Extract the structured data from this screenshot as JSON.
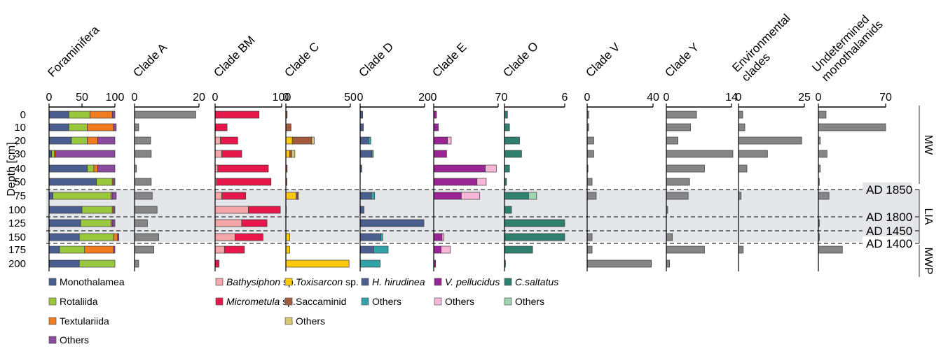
{
  "chart_data": {
    "type": "bar",
    "orientation": "horizontal",
    "stacked": true,
    "y_axis_label": "Depth [cm]",
    "depths": [
      "0",
      "10",
      "20",
      "30",
      "40",
      "50",
      "75",
      "100",
      "125",
      "150",
      "175",
      "200"
    ],
    "bands": [
      {
        "label": "LIA",
        "from_depth": "75",
        "to_depth": "150"
      }
    ],
    "horizons": [
      {
        "label": "AD 1850",
        "at_depth": "75"
      },
      {
        "label": "AD 1800",
        "at_depth": "125"
      },
      {
        "label": "AD 1450",
        "at_depth": "150"
      },
      {
        "label": "AD 1400",
        "at_depth": "175"
      }
    ],
    "periods": [
      {
        "label": "MW",
        "from_depth": "0",
        "to_depth": "50"
      },
      {
        "label": "LIA",
        "from_depth": "75",
        "to_depth": "150"
      },
      {
        "label": "MWP",
        "from_depth": "175",
        "to_depth": "200"
      }
    ],
    "panels": [
      {
        "title": "Foraminifera",
        "ticks": [
          "0",
          "50",
          "100"
        ],
        "max": 100,
        "series": [
          {
            "name": "Monothalamea",
            "color": "#4a5e8f",
            "values": [
              30,
              30,
              34,
              4,
              58,
              72,
              6,
              50,
              48,
              46,
              16,
              46
            ]
          },
          {
            "name": "Rotaliida",
            "color": "#9ac83d",
            "values": [
              32,
              28,
              24,
              4,
              10,
              24,
              88,
              46,
              46,
              52,
              38,
              54
            ]
          },
          {
            "name": "Textulariida",
            "color": "#f07c1f",
            "values": [
              34,
              40,
              16,
              2,
              6,
              2,
              2,
              2,
              2,
              6,
              44,
              0
            ]
          },
          {
            "name": "Others",
            "color": "#8a4a9e",
            "values": [
              4,
              4,
              26,
              90,
              26,
              2,
              6,
              2,
              4,
              2,
              2,
              0
            ]
          }
        ]
      },
      {
        "title": "Clade A",
        "ticks": [
          "0",
          "20"
        ],
        "max": 20,
        "series": [
          {
            "name": "Clade A",
            "color": "#858585",
            "values": [
              19,
              1.3,
              5,
              5.2,
              0.6,
              5.2,
              5.5,
              7,
              4,
              7.5,
              6,
              1.3
            ]
          }
        ]
      },
      {
        "title": "Clade BM",
        "ticks": [
          "0",
          "100"
        ],
        "max": 100,
        "series": [
          {
            "name": "Bathysiphon sp.",
            "color": "#f4a6a8",
            "values": [
              0,
              0,
              8,
              10,
              4,
              2,
              10,
              50,
              40,
              30,
              14,
              0
            ]
          },
          {
            "name": "Micrometula sp.",
            "color": "#e8174b",
            "values": [
              66,
              18,
              26,
              30,
              76,
              82,
              36,
              48,
              38,
              42,
              30,
              6
            ]
          }
        ]
      },
      {
        "title": "Clade C",
        "ticks": [
          "0",
          "50"
        ],
        "max": 50,
        "series": [
          {
            "name": "Toxisarcon sp.",
            "color": "#fcc90d",
            "values": [
              0,
              0,
              5,
              3,
              0,
              0,
              8,
              0,
              0,
              3,
              3,
              49
            ]
          },
          {
            "name": "Saccaminid",
            "color": "#a45a3c",
            "values": [
              1,
              4,
              15,
              1.5,
              1,
              0.8,
              1,
              0.3,
              0,
              0,
              0,
              0
            ]
          },
          {
            "name": "Others",
            "color": "#d8c870",
            "values": [
              0,
              0,
              2,
              2.5,
              0,
              0,
              1,
              0,
              0,
              0,
              0,
              0
            ]
          }
        ]
      },
      {
        "title": "Clade D",
        "ticks": [
          "0",
          "20"
        ],
        "max": 20,
        "series": [
          {
            "name": "H. hirudinea",
            "color": "#4a5e8f",
            "values": [
              0.8,
              1,
              2.5,
              3.6,
              0.5,
              0,
              3.5,
              1.2,
              19.8,
              6.4,
              4.2,
              0
            ]
          },
          {
            "name": "Others",
            "color": "#33a3aa",
            "values": [
              0,
              0,
              0.8,
              0.5,
              0,
              0,
              1,
              0,
              0,
              0.6,
              4.5,
              6.2
            ]
          }
        ]
      },
      {
        "title": "Clade E",
        "ticks": [
          "0",
          "7"
        ],
        "max": 7,
        "series": [
          {
            "name": "V. pellucidus",
            "color": "#9b2495",
            "values": [
              0.3,
              0.5,
              1.5,
              1.4,
              5.6,
              4.7,
              3.0,
              0,
              0,
              0.9,
              0.8,
              0.2
            ]
          },
          {
            "name": "Others",
            "color": "#f7b7d6",
            "values": [
              0,
              0,
              0.4,
              0,
              1.2,
              1.0,
              2.0,
              0,
              0,
              0.2,
              1.0,
              0
            ]
          }
        ]
      },
      {
        "title": "Clade O",
        "ticks": [
          "0",
          "6"
        ],
        "max": 6,
        "series": [
          {
            "name": "C.saltatus",
            "color": "#2f7f6f",
            "values": [
              0.3,
              0.5,
              1.5,
              1.7,
              0.5,
              0.2,
              2.4,
              0.7,
              6,
              6,
              2.8,
              0.1
            ]
          },
          {
            "name": "Others",
            "color": "#9fd4b0",
            "values": [
              0,
              0,
              0,
              0,
              0,
              0,
              0.8,
              0,
              0,
              0,
              0,
              0
            ]
          }
        ]
      },
      {
        "title": "Clade V",
        "ticks": [
          "0",
          "40"
        ],
        "max": 40,
        "series": [
          {
            "name": "Clade V",
            "color": "#858585",
            "values": [
              1,
              1,
              4,
              4,
              0.5,
              3,
              5.5,
              0,
              0,
              3,
              3,
              39
            ]
          }
        ]
      },
      {
        "title": "Clade Y",
        "ticks": [
          "0",
          "14"
        ],
        "max": 14,
        "series": [
          {
            "name": "Clade Y",
            "color": "#858585",
            "values": [
              6.5,
              5.2,
              2.5,
              14.3,
              8.2,
              5.0,
              4.7,
              0.3,
              0,
              1.3,
              8.2,
              0.7
            ]
          }
        ]
      },
      {
        "title": "Environmental clades",
        "title_lines": [
          "Environmental",
          "clades"
        ],
        "ticks": [
          "0",
          "25"
        ],
        "max": 25,
        "series": [
          {
            "name": "Environmental clades",
            "color": "#858585",
            "values": [
              1.6,
              2.4,
              24,
              11,
              3.2,
              0,
              1,
              0,
              0,
              0,
              1.8,
              0
            ]
          }
        ]
      },
      {
        "title": "Undetermined monothalamids",
        "title_lines": [
          "Undetermined",
          "monothalamids"
        ],
        "ticks": [
          "0",
          "70"
        ],
        "max": 70,
        "series": [
          {
            "name": "Undetermined monothalamids",
            "color": "#858585",
            "values": [
              8,
              70,
              2,
              9,
              2,
              1,
              11,
              0,
              1,
              1,
              25,
              0
            ]
          }
        ]
      }
    ],
    "legend": [
      {
        "label": "Monothalamea",
        "italic": false,
        "color": "#4a5e8f"
      },
      {
        "label": "Rotaliida",
        "italic": false,
        "color": "#9ac83d"
      },
      {
        "label": "Textulariida",
        "italic": false,
        "color": "#f07c1f"
      },
      {
        "label": "Others",
        "italic": false,
        "color": "#8a4a9e"
      },
      {
        "label": "Bathysiphon",
        "suffix": " sp.",
        "italic": true,
        "color": "#f4a6a8"
      },
      {
        "label": "Micrometula",
        "suffix": " sp.",
        "italic": true,
        "color": "#e8174b"
      },
      {
        "label": "Toxisarcon",
        "suffix": " sp.",
        "italic": true,
        "color": "#fcc90d"
      },
      {
        "label": "Saccaminid",
        "italic": false,
        "color": "#a45a3c"
      },
      {
        "label": "Others",
        "italic": false,
        "color": "#d8c870"
      },
      {
        "label": "H. hirudinea",
        "italic": true,
        "color": "#4a5e8f"
      },
      {
        "label": "Others",
        "italic": false,
        "color": "#33a3aa"
      },
      {
        "label": "V. pellucidus",
        "italic": true,
        "color": "#9b2495"
      },
      {
        "label": "Others",
        "italic": false,
        "color": "#f7b7d6"
      },
      {
        "label": "C.saltatus",
        "italic": true,
        "color": "#2f7f6f"
      },
      {
        "label": "Others",
        "italic": false,
        "color": "#9fd4b0"
      }
    ]
  }
}
